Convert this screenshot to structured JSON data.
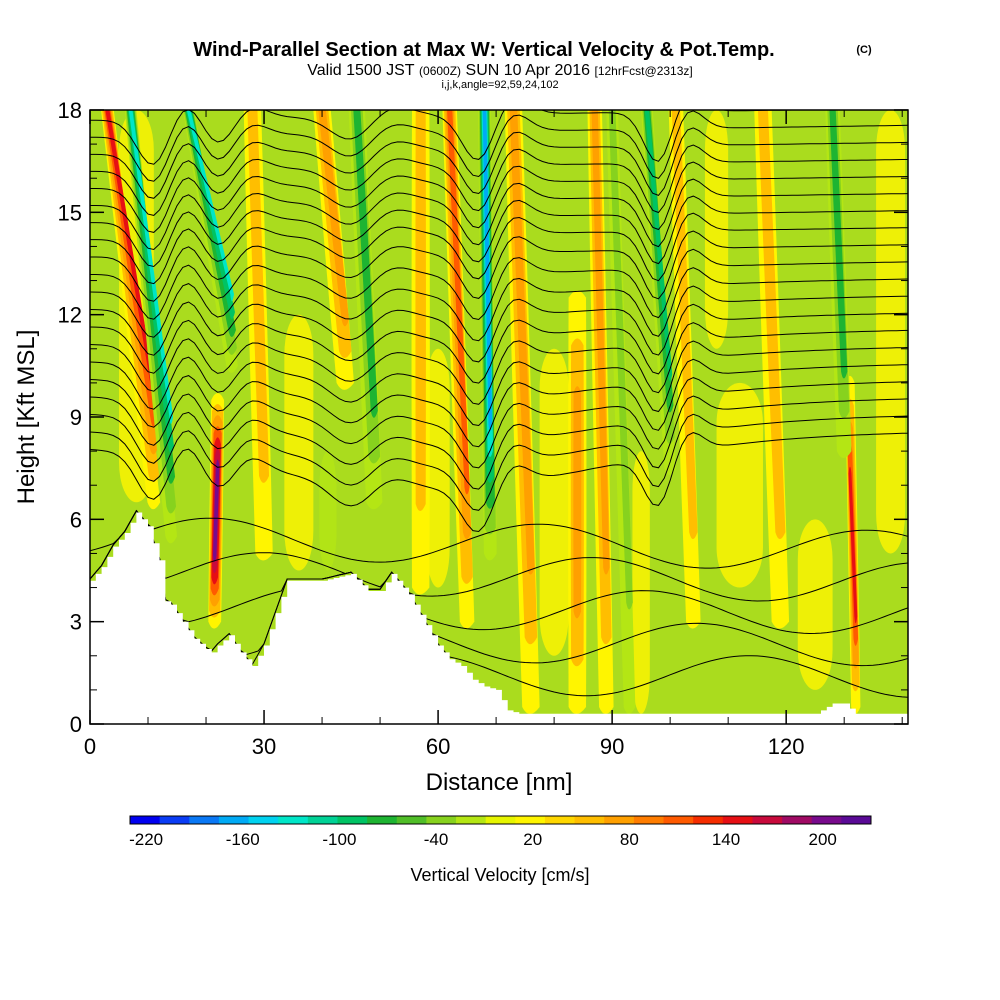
{
  "title": {
    "main": "Wind-Parallel Section at Max W: Vertical Velocity & Pot.Temp.",
    "copyright": "(C)",
    "valid_prefix": "Valid 1500 JST",
    "valid_utc": "(0600Z)",
    "valid_date": "SUN 10 Apr 2016",
    "forecast": "[12hrFcst@2313z]",
    "indices": "i,j,k,angle=92,59,24,102"
  },
  "chart_data": {
    "type": "heatmap",
    "xlabel": "Distance [nm]",
    "ylabel": "Height [Kft MSL]",
    "xlim": [
      0,
      141
    ],
    "ylim": [
      0,
      18
    ],
    "xticks": [
      0,
      30,
      60,
      90,
      120
    ],
    "yticks": [
      0,
      3,
      6,
      9,
      12,
      15,
      18
    ],
    "xtick_labels": [
      "0",
      "30",
      "60",
      "90",
      "120"
    ],
    "ytick_labels": [
      "0",
      "3",
      "6",
      "9",
      "12",
      "15",
      "18"
    ],
    "colorbar": {
      "title": "Vertical Velocity [cm/s]",
      "range": [
        -230,
        230
      ],
      "tick_values": [
        -220,
        -160,
        -100,
        -40,
        20,
        80,
        140,
        200
      ],
      "tick_labels": [
        "-220",
        "-160",
        "-100",
        "-40",
        "20",
        "80",
        "140",
        "200"
      ],
      "colors": [
        "#0000f0",
        "#0a3cf5",
        "#0a78f5",
        "#00aaf5",
        "#00d2f0",
        "#00e6c8",
        "#00d296",
        "#00c364",
        "#1eb432",
        "#50be28",
        "#87d21e",
        "#b4e614",
        "#e6f500",
        "#fff500",
        "#ffd700",
        "#ffbe00",
        "#ffa000",
        "#ff7d00",
        "#ff5a00",
        "#f52d00",
        "#e60f14",
        "#c80a3c",
        "#a00a64",
        "#780a8c",
        "#5a0a96"
      ]
    },
    "terrain_profile": {
      "x": [
        0,
        2,
        4,
        6,
        8,
        10,
        12,
        13,
        14,
        16,
        18,
        20,
        21,
        22,
        24,
        26,
        28,
        30,
        34,
        40,
        45,
        48,
        50,
        52,
        55,
        58,
        60,
        62,
        64,
        66,
        68,
        70,
        72,
        74,
        76,
        80,
        90,
        100,
        110,
        120,
        125,
        128,
        130,
        132,
        135,
        141
      ],
      "height": [
        4.2,
        4.6,
        5.2,
        5.6,
        6.2,
        5.8,
        4.8,
        3.6,
        3.5,
        3.0,
        2.5,
        2.2,
        2.1,
        2.3,
        2.6,
        2.1,
        1.7,
        2.3,
        4.2,
        4.2,
        4.4,
        3.9,
        3.9,
        4.4,
        3.8,
        2.9,
        2.3,
        1.9,
        1.7,
        1.3,
        1.1,
        1.0,
        0.4,
        0.3,
        0.3,
        0.3,
        0.3,
        0.3,
        0.3,
        0.3,
        0.3,
        0.6,
        0.6,
        0.3,
        0.3,
        0.3
      ]
    },
    "vertical_velocity_bands": [
      {
        "x0": 11,
        "x1": 3,
        "h0": 6.5,
        "h1": 18,
        "w": 2.2,
        "value": 150
      },
      {
        "x0": 14,
        "x1": 7,
        "h0": 5.5,
        "h1": 18,
        "w": 2.0,
        "value": -130
      },
      {
        "x0": 21.5,
        "x1": 22,
        "h0": 3.0,
        "h1": 9.5,
        "w": 2.2,
        "value": 210
      },
      {
        "x0": 24.5,
        "x1": 17,
        "h0": 10.5,
        "h1": 18,
        "w": 2.0,
        "value": -150
      },
      {
        "x0": 30,
        "x1": 28,
        "h0": 5.0,
        "h1": 18,
        "w": 3.0,
        "value": 55
      },
      {
        "x0": 44,
        "x1": 40,
        "h0": 10.0,
        "h1": 18,
        "w": 3.0,
        "value": 100
      },
      {
        "x0": 49,
        "x1": 46,
        "h0": 6.5,
        "h1": 18,
        "w": 2.8,
        "value": -95
      },
      {
        "x0": 57,
        "x1": 57,
        "h0": 4.0,
        "h1": 18,
        "w": 3.0,
        "value": 60
      },
      {
        "x0": 65,
        "x1": 62,
        "h0": 3.0,
        "h1": 18,
        "w": 2.5,
        "value": 130
      },
      {
        "x0": 69,
        "x1": 68,
        "h0": 5.0,
        "h1": 18,
        "w": 2.2,
        "value": -175
      },
      {
        "x0": 76,
        "x1": 73,
        "h0": 0.5,
        "h1": 18,
        "w": 3.0,
        "value": 85
      },
      {
        "x0": 84,
        "x1": 84,
        "h0": 0.5,
        "h1": 12.5,
        "w": 3.0,
        "value": 85
      },
      {
        "x0": 89,
        "x1": 87,
        "h0": 0.5,
        "h1": 18,
        "w": 2.5,
        "value": 80
      },
      {
        "x0": 93,
        "x1": 90,
        "h0": 0.5,
        "h1": 18,
        "w": 2.0,
        "value": -65
      },
      {
        "x0": 100,
        "x1": 96,
        "h0": 7.5,
        "h1": 18,
        "w": 2.0,
        "value": -110
      },
      {
        "x0": 104,
        "x1": 101,
        "h0": 3.0,
        "h1": 18,
        "w": 2.5,
        "value": 70
      },
      {
        "x0": 132,
        "x1": 131,
        "h0": 0.5,
        "h1": 10.0,
        "w": 1.6,
        "value": 140
      },
      {
        "x0": 130,
        "x1": 128,
        "h0": 8.0,
        "h1": 18,
        "w": 2.5,
        "value": -75
      },
      {
        "x0": 119,
        "x1": 116,
        "h0": 3.0,
        "h1": 18,
        "w": 3.0,
        "value": 60
      }
    ],
    "theta_contours": {
      "levels": [
        8.2,
        8.7,
        9.2,
        9.7,
        10.2,
        10.7,
        11.2,
        11.7,
        12.2,
        12.7,
        13.2,
        13.7,
        14.2,
        14.7,
        15.2,
        15.7,
        16.2,
        16.7,
        17.2,
        17.7
      ],
      "low_levels": [
        1.5,
        2.5,
        3.5,
        4.5,
        5.5
      ]
    }
  }
}
